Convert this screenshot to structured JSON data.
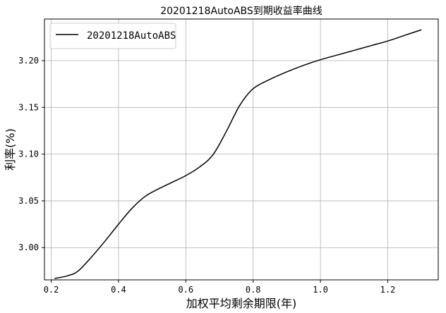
{
  "chart_data": {
    "type": "line",
    "title": "20201218AutoABS到期收益率曲线",
    "xlabel": "加权平均剩余期限(年)",
    "ylabel": "利率(%)",
    "xlim": [
      0.18,
      1.35
    ],
    "ylim": [
      2.9655,
      3.2445
    ],
    "xticks": [
      0.2,
      0.4,
      0.6,
      0.8,
      1.0,
      1.2
    ],
    "xtick_labels": [
      "0.2",
      "0.4",
      "0.6",
      "0.8",
      "1.0",
      "1.2"
    ],
    "yticks": [
      3.0,
      3.05,
      3.1,
      3.15,
      3.2
    ],
    "ytick_labels": [
      "3.00",
      "3.05",
      "3.10",
      "3.15",
      "3.20"
    ],
    "grid": true,
    "legend_position": "top-left",
    "series": [
      {
        "name": "20201218AutoABS",
        "color": "#000000",
        "x": [
          0.21,
          0.25,
          0.28,
          0.32,
          0.36,
          0.4,
          0.44,
          0.48,
          0.52,
          0.56,
          0.6,
          0.64,
          0.68,
          0.72,
          0.76,
          0.8,
          0.85,
          0.9,
          0.95,
          1.0,
          1.05,
          1.1,
          1.15,
          1.2,
          1.25,
          1.3
        ],
        "y": [
          2.967,
          2.97,
          2.975,
          2.99,
          3.007,
          3.025,
          3.042,
          3.055,
          3.063,
          3.07,
          3.077,
          3.086,
          3.099,
          3.124,
          3.152,
          3.17,
          3.18,
          3.188,
          3.195,
          3.201,
          3.206,
          3.211,
          3.216,
          3.221,
          3.227,
          3.233
        ]
      }
    ]
  }
}
